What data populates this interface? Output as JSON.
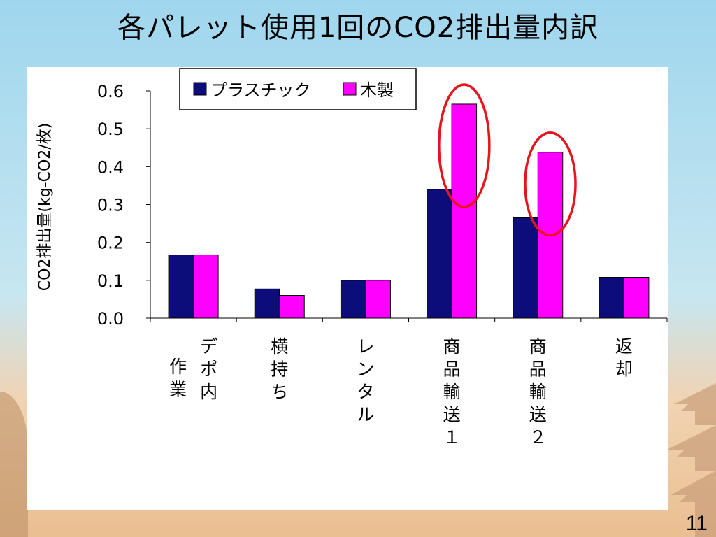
{
  "slide": {
    "title": "各パレット使用1回のCO2排出量内訳",
    "page_number": "11"
  },
  "chart_data": {
    "type": "bar",
    "ylabel": "CO2排出量(kg-CO2/枚)",
    "ylim": [
      0.0,
      0.6
    ],
    "yticks": [
      "0.0",
      "0.1",
      "0.2",
      "0.3",
      "0.4",
      "0.5",
      "0.6"
    ],
    "categories": [
      "デポ内作業",
      "横持ち",
      "レンタル",
      "商品輸送１",
      "商品輸送２",
      "返却"
    ],
    "category_label_columns": [
      [
        "作業",
        "デポ内"
      ],
      [
        "横持ち"
      ],
      [
        "レンタル"
      ],
      [
        "商品輸送１"
      ],
      [
        "商品輸送２"
      ],
      [
        "返却"
      ]
    ],
    "series": [
      {
        "name": "プラスチック",
        "color": "#0c0c7a",
        "values": [
          0.167,
          0.077,
          0.1,
          0.34,
          0.265,
          0.108
        ]
      },
      {
        "name": "木製",
        "color": "#ff00ff",
        "values": [
          0.167,
          0.06,
          0.1,
          0.565,
          0.438,
          0.108
        ]
      }
    ],
    "highlighted_categories": [
      "商品輸送１",
      "商品輸送２"
    ],
    "highlight_color": "#e8141c",
    "legend_position": "top",
    "grid": false
  }
}
